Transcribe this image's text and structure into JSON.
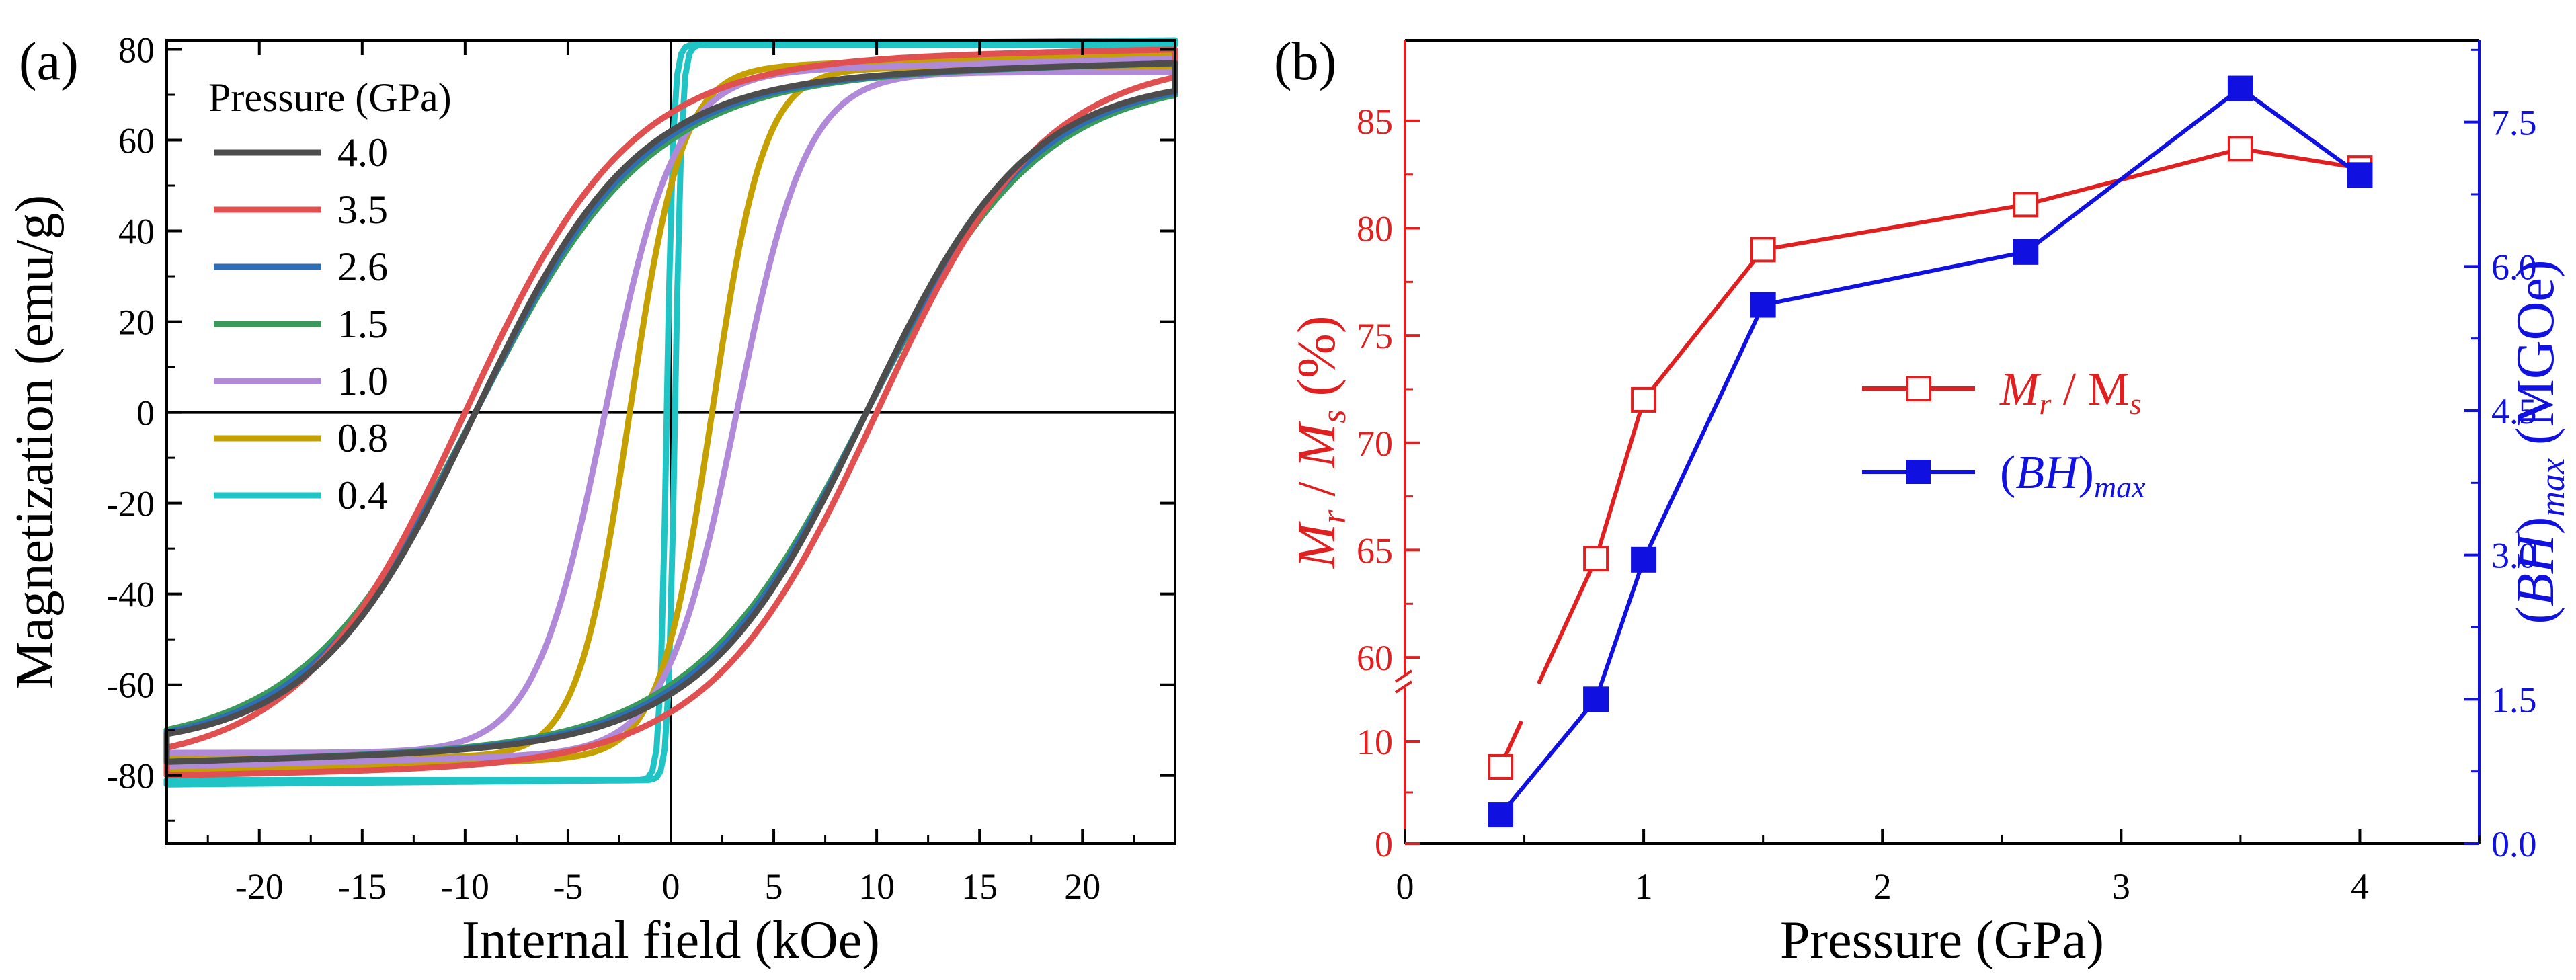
{
  "chart_data": [
    {
      "panel_label": "(a)",
      "type": "line",
      "title": "",
      "xlabel": "Internal field (kOe)",
      "ylabel": "Magnetization (emu/g)",
      "xlim": [
        -24.5,
        24.5
      ],
      "ylim": [
        -95,
        82
      ],
      "xticks": [
        -20,
        -15,
        -10,
        -5,
        0,
        5,
        10,
        15,
        20
      ],
      "yticks": [
        -80,
        -60,
        -40,
        -20,
        0,
        20,
        40,
        60,
        80
      ],
      "legend_title": "Pressure (GPa)",
      "legend_position": "top-left",
      "series": [
        {
          "name": "4.0",
          "color": "#4d4d4d",
          "hc": 9.5,
          "ms": 74,
          "mr": 62,
          "width": 4.2,
          "msat": 77
        },
        {
          "name": "3.5",
          "color": "#e05050",
          "hc": 10.0,
          "ms": 78,
          "mr": 66,
          "width": 3.6,
          "msat": 80
        },
        {
          "name": "2.6",
          "color": "#2f6db5",
          "hc": 9.5,
          "ms": 74,
          "mr": 61,
          "width": 4.5,
          "msat": 77
        },
        {
          "name": "1.5",
          "color": "#3a9a5a",
          "hc": 9.5,
          "ms": 74,
          "mr": 60,
          "width": 4.6,
          "msat": 77
        },
        {
          "name": "1.0",
          "color": "#b08ad8",
          "hc": 3.2,
          "ms": 75,
          "mr": 55,
          "width": 2.6,
          "msat": 78
        },
        {
          "name": "0.8",
          "color": "#c4a000",
          "hc": 2.0,
          "ms": 76,
          "mr": 50,
          "width": 2.2,
          "msat": 79
        },
        {
          "name": "0.4",
          "color": "#20c4c4",
          "hc": 0.2,
          "ms": 81,
          "mr": 45,
          "width": 0.8,
          "msat": 82
        }
      ]
    },
    {
      "panel_label": "(b)",
      "type": "line",
      "title": "",
      "xlabel": "Pressure (GPa)",
      "ylabel_left": "Mr / Ms (%)",
      "ylabel_right": "(BH)max (MGOe)",
      "xlim": [
        0,
        4.5
      ],
      "xticks": [
        0,
        1,
        2,
        3,
        4
      ],
      "y_left_ticks_lower": [
        0,
        10
      ],
      "y_left_ticks_upper": [
        60,
        65,
        70,
        75,
        80,
        85
      ],
      "y_left_break": [
        10,
        59
      ],
      "y_right_lim": [
        0,
        8.35
      ],
      "y_right_ticks": [
        "0.0",
        "1.5",
        "3.0",
        "4.5",
        "6.0",
        "7.5"
      ],
      "legend_position": "center-right",
      "series": [
        {
          "name": "Mr / Ms",
          "legend_main": "M",
          "legend_sub1": "r",
          "legend_mid": " / M",
          "legend_sub2": "s",
          "axis": "left",
          "color": "#e02020",
          "marker": "open-square",
          "x": [
            0.4,
            0.8,
            1.0,
            1.5,
            2.6,
            3.5,
            4.0
          ],
          "y": [
            7.5,
            64.6,
            72.0,
            79.0,
            81.1,
            83.7,
            82.8
          ]
        },
        {
          "name": "(BH)max",
          "legend_main": "(BH)",
          "legend_sub": "max",
          "axis": "right",
          "color": "#1010e0",
          "marker": "filled-square",
          "x": [
            0.4,
            0.8,
            1.0,
            1.5,
            2.6,
            3.5,
            4.0
          ],
          "y": [
            0.3,
            1.5,
            2.95,
            5.6,
            6.15,
            7.85,
            6.95
          ]
        }
      ]
    }
  ]
}
